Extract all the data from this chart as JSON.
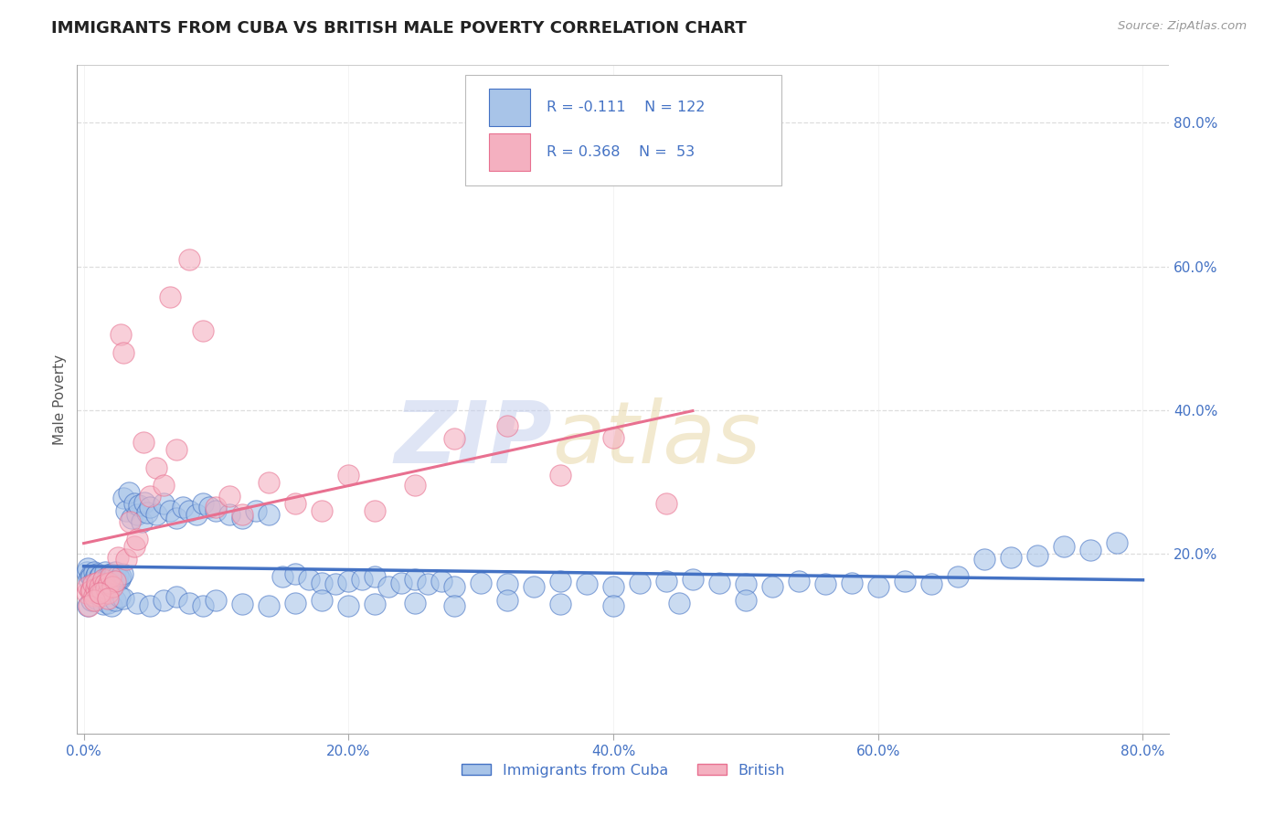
{
  "title": "IMMIGRANTS FROM CUBA VS BRITISH MALE POVERTY CORRELATION CHART",
  "source_text": "Source: ZipAtlas.com",
  "ylabel": "Male Poverty",
  "legend_labels": [
    "Immigrants from Cuba",
    "British"
  ],
  "R_cuba": -0.111,
  "N_cuba": 122,
  "R_british": 0.368,
  "N_british": 53,
  "xlim": [
    -0.005,
    0.82
  ],
  "ylim": [
    -0.05,
    0.88
  ],
  "xticks": [
    0.0,
    0.2,
    0.4,
    0.6,
    0.8
  ],
  "yticks": [
    0.2,
    0.4,
    0.6,
    0.8
  ],
  "color_cuba": "#a8c4e8",
  "color_british": "#f4b0c0",
  "line_color_cuba": "#4472c4",
  "line_color_british": "#e87090",
  "axis_color": "#4472c4",
  "title_color": "#222222",
  "background_color": "#ffffff",
  "grid_color": "#dddddd",
  "cuba_x": [
    0.002,
    0.003,
    0.004,
    0.005,
    0.006,
    0.007,
    0.008,
    0.009,
    0.01,
    0.011,
    0.012,
    0.013,
    0.014,
    0.015,
    0.016,
    0.017,
    0.018,
    0.019,
    0.02,
    0.021,
    0.022,
    0.023,
    0.024,
    0.025,
    0.026,
    0.027,
    0.028,
    0.029,
    0.03,
    0.032,
    0.034,
    0.036,
    0.038,
    0.04,
    0.042,
    0.044,
    0.046,
    0.048,
    0.05,
    0.055,
    0.06,
    0.065,
    0.07,
    0.075,
    0.08,
    0.085,
    0.09,
    0.095,
    0.1,
    0.11,
    0.12,
    0.13,
    0.14,
    0.15,
    0.16,
    0.17,
    0.18,
    0.19,
    0.2,
    0.21,
    0.22,
    0.23,
    0.24,
    0.25,
    0.26,
    0.27,
    0.28,
    0.3,
    0.32,
    0.34,
    0.36,
    0.38,
    0.4,
    0.42,
    0.44,
    0.46,
    0.48,
    0.5,
    0.52,
    0.54,
    0.56,
    0.58,
    0.6,
    0.62,
    0.64,
    0.66,
    0.68,
    0.7,
    0.72,
    0.74,
    0.76,
    0.78,
    0.003,
    0.006,
    0.009,
    0.012,
    0.015,
    0.018,
    0.021,
    0.024,
    0.027,
    0.03,
    0.04,
    0.05,
    0.06,
    0.07,
    0.08,
    0.09,
    0.1,
    0.12,
    0.14,
    0.16,
    0.18,
    0.2,
    0.22,
    0.25,
    0.28,
    0.32,
    0.36,
    0.4,
    0.45,
    0.5
  ],
  "cuba_y": [
    0.175,
    0.18,
    0.165,
    0.17,
    0.168,
    0.162,
    0.175,
    0.17,
    0.172,
    0.165,
    0.168,
    0.17,
    0.16,
    0.165,
    0.175,
    0.162,
    0.168,
    0.158,
    0.172,
    0.165,
    0.17,
    0.168,
    0.175,
    0.162,
    0.17,
    0.165,
    0.168,
    0.172,
    0.278,
    0.26,
    0.285,
    0.25,
    0.27,
    0.255,
    0.268,
    0.245,
    0.272,
    0.258,
    0.265,
    0.255,
    0.27,
    0.26,
    0.25,
    0.265,
    0.26,
    0.255,
    0.27,
    0.265,
    0.26,
    0.255,
    0.25,
    0.26,
    0.255,
    0.168,
    0.172,
    0.165,
    0.16,
    0.158,
    0.162,
    0.165,
    0.168,
    0.155,
    0.16,
    0.165,
    0.158,
    0.162,
    0.155,
    0.16,
    0.158,
    0.155,
    0.162,
    0.158,
    0.155,
    0.16,
    0.162,
    0.165,
    0.16,
    0.158,
    0.155,
    0.162,
    0.158,
    0.16,
    0.155,
    0.162,
    0.158,
    0.168,
    0.192,
    0.195,
    0.198,
    0.21,
    0.205,
    0.215,
    0.128,
    0.135,
    0.138,
    0.142,
    0.13,
    0.132,
    0.128,
    0.135,
    0.14,
    0.138,
    0.132,
    0.128,
    0.135,
    0.14,
    0.132,
    0.128,
    0.135,
    0.13,
    0.128,
    0.132,
    0.135,
    0.128,
    0.13,
    0.132,
    0.128,
    0.135,
    0.13,
    0.128,
    0.132,
    0.135
  ],
  "british_x": [
    0.002,
    0.003,
    0.005,
    0.006,
    0.007,
    0.008,
    0.009,
    0.01,
    0.011,
    0.012,
    0.013,
    0.014,
    0.015,
    0.016,
    0.017,
    0.018,
    0.019,
    0.02,
    0.022,
    0.024,
    0.026,
    0.028,
    0.03,
    0.032,
    0.035,
    0.038,
    0.04,
    0.045,
    0.05,
    0.055,
    0.06,
    0.065,
    0.07,
    0.08,
    0.09,
    0.1,
    0.11,
    0.12,
    0.14,
    0.16,
    0.18,
    0.2,
    0.22,
    0.25,
    0.28,
    0.32,
    0.36,
    0.4,
    0.44,
    0.004,
    0.008,
    0.012,
    0.018
  ],
  "british_y": [
    0.145,
    0.155,
    0.148,
    0.15,
    0.158,
    0.142,
    0.152,
    0.16,
    0.148,
    0.155,
    0.142,
    0.148,
    0.165,
    0.158,
    0.152,
    0.145,
    0.16,
    0.168,
    0.155,
    0.162,
    0.195,
    0.505,
    0.48,
    0.192,
    0.245,
    0.21,
    0.22,
    0.355,
    0.28,
    0.32,
    0.295,
    0.558,
    0.345,
    0.61,
    0.51,
    0.265,
    0.28,
    0.255,
    0.3,
    0.27,
    0.26,
    0.31,
    0.26,
    0.295,
    0.36,
    0.378,
    0.31,
    0.362,
    0.27,
    0.128,
    0.135,
    0.145,
    0.138
  ]
}
